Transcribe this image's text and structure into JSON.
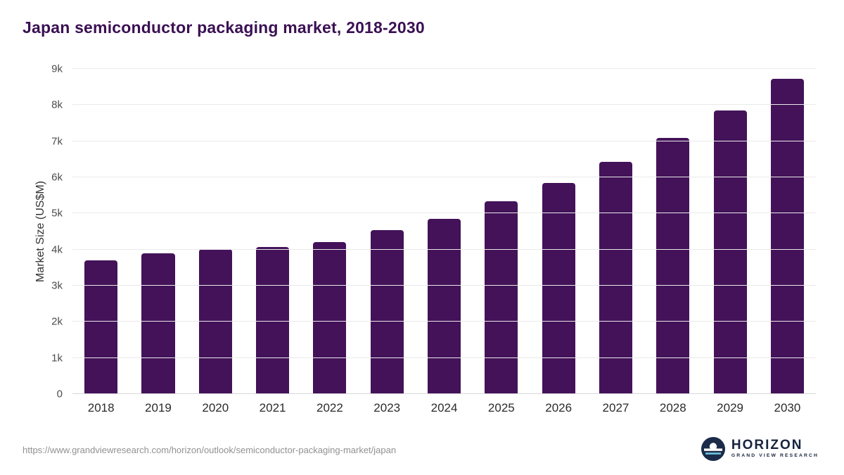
{
  "title": "Japan semiconductor packaging market, 2018-2030",
  "chart_data": {
    "type": "bar",
    "title": "Japan semiconductor packaging market, 2018-2030",
    "categories": [
      "2018",
      "2019",
      "2020",
      "2021",
      "2022",
      "2023",
      "2024",
      "2025",
      "2026",
      "2027",
      "2028",
      "2029",
      "2030"
    ],
    "values": [
      3700,
      3900,
      4020,
      4080,
      4210,
      4530,
      4860,
      5340,
      5850,
      6430,
      7090,
      7860,
      8730
    ],
    "xlabel": "",
    "ylabel": "Market Size (US$M)",
    "ylim": [
      0,
      9000
    ],
    "ytick_values": [
      0,
      1000,
      2000,
      3000,
      4000,
      5000,
      6000,
      7000,
      8000,
      9000
    ],
    "ytick_labels": [
      "0",
      "1k",
      "2k",
      "3k",
      "4k",
      "5k",
      "6k",
      "7k",
      "8k",
      "9k"
    ],
    "grid": true,
    "legend": false,
    "bar_color": "#431259"
  },
  "footer": {
    "source_url": "https://www.grandviewresearch.com/horizon/outlook/semiconductor-packaging-market/japan",
    "logo_text": "HORIZON",
    "logo_subtext": "GRAND VIEW RESEARCH"
  },
  "colors": {
    "title": "#3a1053",
    "bar": "#431259",
    "gridline": "#e9e9e9",
    "axis_text": "#4d4d4d",
    "logo_navy": "#1b2b4a",
    "logo_lightblue": "#6ec6df"
  }
}
